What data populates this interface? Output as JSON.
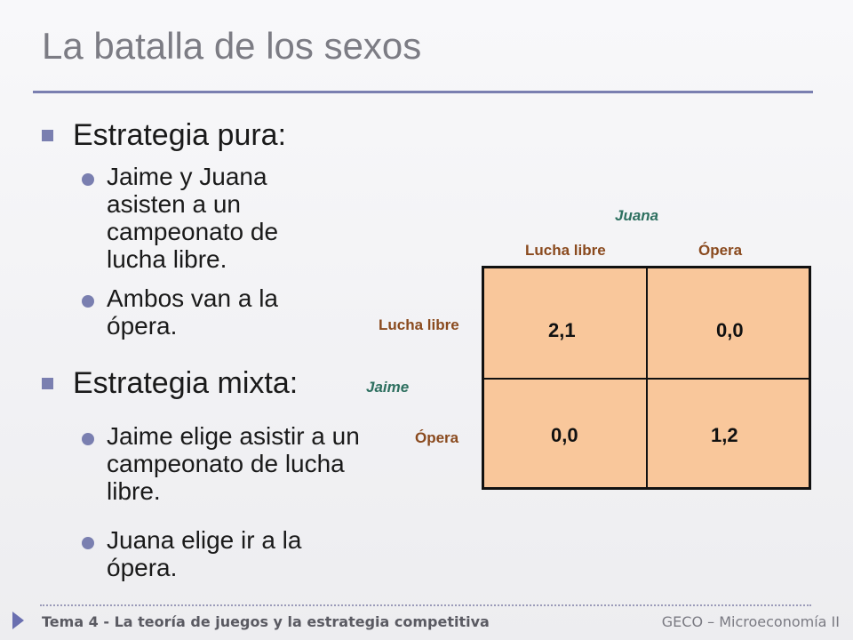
{
  "title": "La batalla de los sexos",
  "bullets": {
    "pure": {
      "heading": "Estrategia pura:",
      "items": [
        "Jaime y Juana asisten a un campeonato de lucha libre.",
        "Ambos van a la ópera."
      ]
    },
    "mixed": {
      "heading": "Estrategia mixta:",
      "items": [
        "Jaime elige asistir a un campeonato de lucha libre.",
        "Juana elige ir a la ópera."
      ]
    }
  },
  "matrix": {
    "col_player": "Juana",
    "row_player": "Jaime",
    "col_labels": [
      "Lucha libre",
      "Ópera"
    ],
    "row_labels": [
      "Lucha libre",
      "Ópera"
    ],
    "cells": [
      [
        "2,1",
        "0,0"
      ],
      [
        "0,0",
        "1,2"
      ]
    ]
  },
  "footer": {
    "left": "Tema 4 - La teoría de juegos y la estrategia competitiva",
    "right": "GECO – Microeconomía II"
  },
  "colors": {
    "accent": "#7a7fb0",
    "matrix_fill": "#f9c79b",
    "player_label": "#2e7060",
    "strategy_label": "#8a4a1e"
  }
}
